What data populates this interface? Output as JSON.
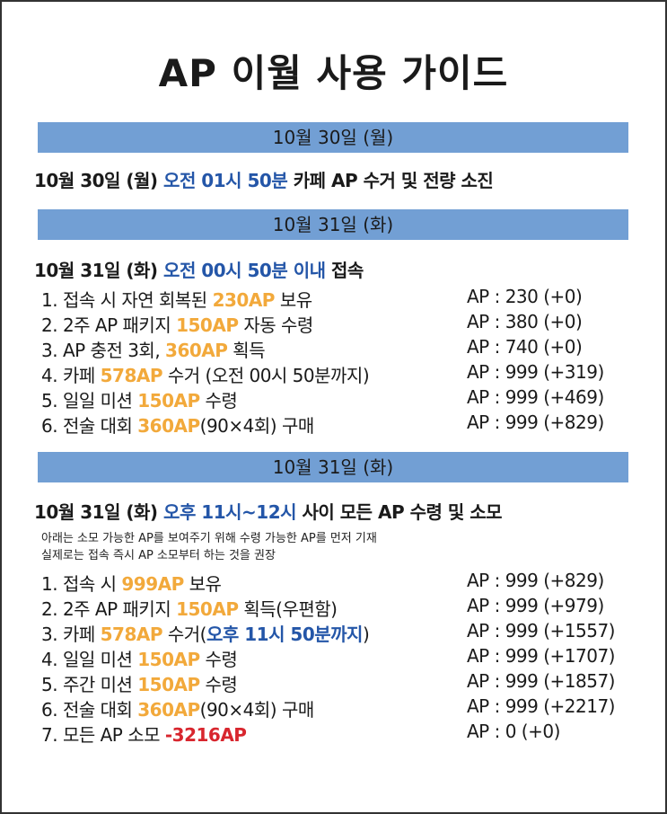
{
  "title": "AP 이월 사용 가이드",
  "colors": {
    "bar": "#729fd4",
    "blue": "#2456a8",
    "orange": "#f2a93b",
    "red": "#d8262e"
  },
  "sections": [
    {
      "bar": "10월 30일 (월)",
      "heading": [
        {
          "text": "10월 30일 (월) "
        },
        {
          "text": "오전 01시 50분",
          "style": "blue"
        },
        {
          "text": " 카페 AP 수거 및 전량 소진"
        }
      ],
      "notes": [],
      "items": []
    },
    {
      "bar": "10월 31일 (화)",
      "heading": [
        {
          "text": "10월 31일 (화) "
        },
        {
          "text": "오전 00시 50분 이내",
          "style": "blue"
        },
        {
          "text": " 접속"
        }
      ],
      "notes": [],
      "items": [
        {
          "parts": [
            {
              "text": "1.  접속 시 자연 회복된 "
            },
            {
              "text": "230AP",
              "style": "orange"
            },
            {
              "text": " 보유"
            }
          ],
          "ap": "AP : 230 (+0)"
        },
        {
          "parts": [
            {
              "text": "2.  2주 AP 패키지 "
            },
            {
              "text": "150AP",
              "style": "orange"
            },
            {
              "text": " 자동 수령"
            }
          ],
          "ap": "AP : 380 (+0)"
        },
        {
          "parts": [
            {
              "text": "3.  AP 충전 3회, "
            },
            {
              "text": "360AP",
              "style": "orange"
            },
            {
              "text": " 획득"
            }
          ],
          "ap": "AP : 740 (+0)"
        },
        {
          "parts": [
            {
              "text": "4.  카페 "
            },
            {
              "text": "578AP",
              "style": "orange"
            },
            {
              "text": " 수거 (오전 00시 50분까지)"
            }
          ],
          "ap": "AP : 999 (+319)"
        },
        {
          "parts": [
            {
              "text": "5.  일일 미션 "
            },
            {
              "text": "150AP",
              "style": "orange"
            },
            {
              "text": " 수령"
            }
          ],
          "ap": "AP : 999 (+469)"
        },
        {
          "parts": [
            {
              "text": "6.  전술 대회 "
            },
            {
              "text": "360AP",
              "style": "orange"
            },
            {
              "text": "(90×4회) 구매"
            }
          ],
          "ap": "AP : 999 (+829)"
        }
      ]
    },
    {
      "bar": "10월 31일 (화)",
      "heading": [
        {
          "text": "10월 31일 (화) "
        },
        {
          "text": "오후 11시~12시",
          "style": "blue"
        },
        {
          "text": " 사이 모든 AP 수령 및 소모"
        }
      ],
      "notes": [
        "아래는 소모 가능한 AP를 보여주기 위해 수령 가능한 AP를 먼저 기재",
        "실제로는 접속 즉시 AP 소모부터 하는 것을 권장"
      ],
      "items": [
        {
          "parts": [
            {
              "text": "1.  접속 시 "
            },
            {
              "text": "999AP",
              "style": "orange"
            },
            {
              "text": " 보유"
            }
          ],
          "ap": "AP : 999 (+829)"
        },
        {
          "parts": [
            {
              "text": "2.  2주 AP 패키지 "
            },
            {
              "text": "150AP",
              "style": "orange"
            },
            {
              "text": " 획득(우편함)"
            }
          ],
          "ap": "AP : 999 (+979)"
        },
        {
          "parts": [
            {
              "text": "3.  카페 "
            },
            {
              "text": "578AP",
              "style": "orange"
            },
            {
              "text": " 수거("
            },
            {
              "text": "오후 11시 50분까지",
              "style": "blue"
            },
            {
              "text": ")"
            }
          ],
          "ap": "AP : 999 (+1557)"
        },
        {
          "parts": [
            {
              "text": "4.  일일 미션 "
            },
            {
              "text": "150AP",
              "style": "orange"
            },
            {
              "text": " 수령"
            }
          ],
          "ap": "AP : 999 (+1707)"
        },
        {
          "parts": [
            {
              "text": "5.  주간 미션 "
            },
            {
              "text": "150AP",
              "style": "orange"
            },
            {
              "text": " 수령"
            }
          ],
          "ap": "AP : 999 (+1857)"
        },
        {
          "parts": [
            {
              "text": "6.  전술 대회 "
            },
            {
              "text": "360AP",
              "style": "orange"
            },
            {
              "text": "(90×4회) 구매"
            }
          ],
          "ap": "AP : 999 (+2217)"
        },
        {
          "parts": [
            {
              "text": "7.  모든 AP 소모 "
            },
            {
              "text": "-3216AP",
              "style": "red"
            }
          ],
          "ap": "AP : 0 (+0)"
        }
      ]
    }
  ]
}
